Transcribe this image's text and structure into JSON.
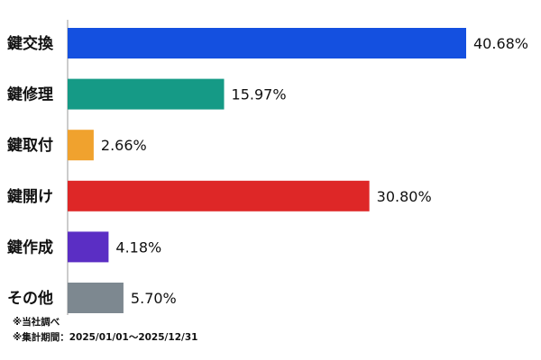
{
  "chart_data": {
    "type": "bar",
    "orientation": "horizontal",
    "categories": [
      "鍵交換",
      "鍵修理",
      "鍵取付",
      "鍵開け",
      "鍵作成",
      "その他"
    ],
    "values": [
      40.68,
      15.97,
      2.66,
      30.8,
      4.18,
      5.7
    ],
    "value_labels": [
      "40.68%",
      "15.97%",
      "2.66%",
      "30.80%",
      "4.18%",
      "5.70%"
    ],
    "colors": [
      "#1450e0",
      "#159a86",
      "#f0a22e",
      "#de2727",
      "#5b2ec4",
      "#7d8890"
    ],
    "unit": "%",
    "grid": false,
    "legend": "none"
  },
  "notes": {
    "source": "※当社調べ",
    "period": "※集計期間：2025/01/01～2025/12/31"
  }
}
